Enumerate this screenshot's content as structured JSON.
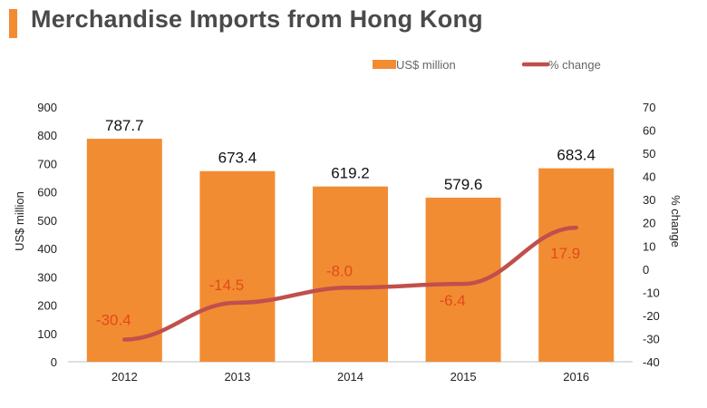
{
  "title": "Merchandise Imports from Hong Kong",
  "colors": {
    "accent": "#F28C33",
    "bar": "#F28C33",
    "line": "#C0504D",
    "line_label": "#E24A1A",
    "title": "#4A4A4A"
  },
  "legend": {
    "bar_label": "US$ million",
    "line_label": "% change"
  },
  "chart_data": {
    "type": "bar+line",
    "categories": [
      "2012",
      "2013",
      "2014",
      "2015",
      "2016"
    ],
    "series": [
      {
        "name": "US$ million",
        "type": "bar",
        "axis": "left",
        "values": [
          787.7,
          673.4,
          619.2,
          579.6,
          683.4
        ],
        "labels": [
          "787.7",
          "673.4",
          "619.2",
          "579.6",
          "683.4"
        ]
      },
      {
        "name": "% change",
        "type": "line",
        "axis": "right",
        "values": [
          -30.4,
          -14.5,
          -8.0,
          -6.4,
          17.9
        ],
        "labels": [
          "-30.4",
          "-14.5",
          "-8.0",
          "-6.4",
          "17.9"
        ]
      }
    ],
    "y_left": {
      "label": "US$ million",
      "range": [
        0,
        900
      ],
      "ticks": [
        "0",
        "100",
        "200",
        "300",
        "400",
        "500",
        "600",
        "700",
        "800",
        "900"
      ]
    },
    "y_right": {
      "label": "% change",
      "range": [
        -40,
        70
      ],
      "ticks": [
        "-40",
        "-30",
        "-20",
        "-10",
        "0",
        "10",
        "20",
        "30",
        "40",
        "50",
        "60",
        "70"
      ]
    },
    "grid": false,
    "legend_position": "top-right"
  }
}
